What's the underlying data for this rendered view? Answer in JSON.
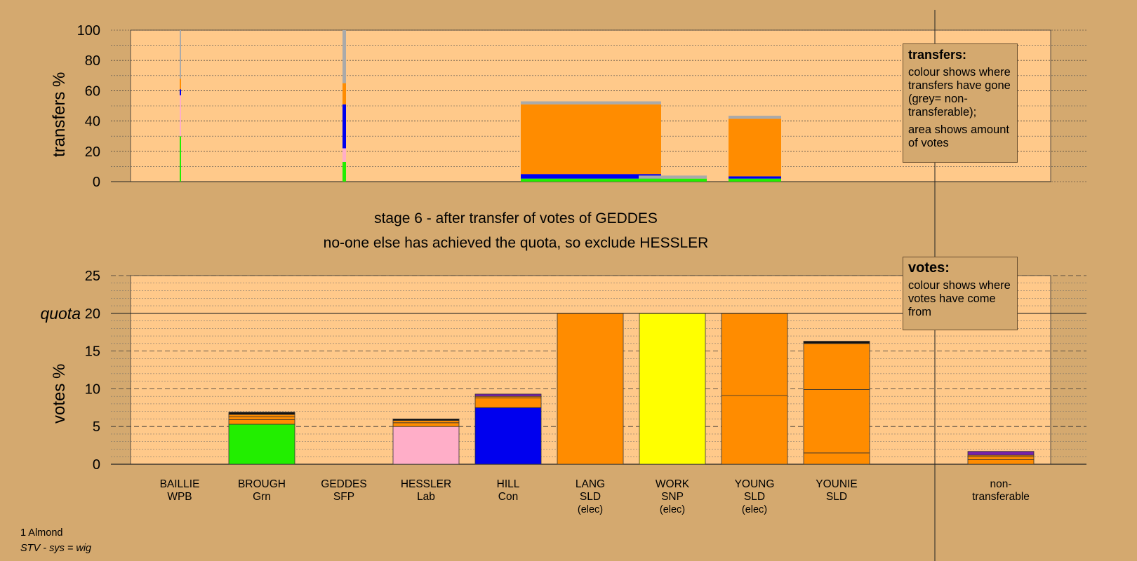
{
  "stage_title": "stage 6 - after transfer of votes of GEDDES",
  "stage_subtitle": "no-one else has achieved the quota, so exclude HESSLER",
  "footer": {
    "ward": "1 Almond",
    "system": "STV - sys = wig"
  },
  "legend_transfers": {
    "title": "transfers:",
    "line1": "colour shows where transfers have gone (grey= non-transferable);",
    "line2": "area shows amount of votes"
  },
  "legend_votes": {
    "title": "votes:",
    "line1": "colour shows where votes have come from"
  },
  "colors": {
    "background": "#d4a96f",
    "plot_bg": "#ffc98a",
    "SLD": "#ff8c00",
    "SNP": "#ffff00",
    "Grn": "#22ee00",
    "Lab": "#ffaec8",
    "Con": "#0000ee",
    "nontransferable": "#aaaaaa",
    "purple": "#7722aa",
    "dark": "#111111"
  },
  "chart_data": [
    {
      "type": "bar",
      "ylabel": "transfers %",
      "ylim": [
        0,
        100
      ],
      "yticks": [
        0,
        20,
        40,
        60,
        80,
        100
      ],
      "bars": [
        {
          "source": "BAILLIE",
          "segments": [
            {
              "party": "Grn",
              "value": 30
            },
            {
              "party": "Lab",
              "value": 27
            },
            {
              "party": "Con",
              "value": 4
            },
            {
              "party": "SLD",
              "value": 7
            },
            {
              "party": "nontransferable",
              "value": 32
            }
          ]
        },
        {
          "source": "GEDDES",
          "segments": [
            {
              "party": "Grn",
              "value": 13
            },
            {
              "party": "Lab",
              "value": 9
            },
            {
              "party": "Con",
              "value": 29
            },
            {
              "party": "SLD",
              "value": 14
            },
            {
              "party": "nontransferable",
              "value": 35
            }
          ]
        },
        {
          "source": "LANG",
          "segments": [
            {
              "party": "Grn",
              "value": 2
            },
            {
              "party": "Con",
              "value": 3
            },
            {
              "party": "SLD",
              "value": 46
            },
            {
              "party": "nontransferable",
              "value": 2
            }
          ]
        },
        {
          "source": "WORK",
          "segments": [
            {
              "party": "Grn",
              "value": 2
            },
            {
              "party": "nontransferable",
              "value": 2
            }
          ]
        },
        {
          "source": "YOUNG",
          "segments": [
            {
              "party": "Grn",
              "value": 2
            },
            {
              "party": "Con",
              "value": 1.5
            },
            {
              "party": "SLD",
              "value": 38
            },
            {
              "party": "nontransferable",
              "value": 2
            }
          ]
        }
      ]
    },
    {
      "type": "bar",
      "ylabel": "votes %",
      "ylim": [
        0,
        25
      ],
      "yticks": [
        0,
        5,
        10,
        15,
        20,
        25
      ],
      "quota": 20,
      "quota_label": "quota",
      "categories": [
        {
          "name": "BAILLIE",
          "party": "WPB",
          "note": ""
        },
        {
          "name": "BROUGH",
          "party": "Grn",
          "note": ""
        },
        {
          "name": "GEDDES",
          "party": "SFP",
          "note": ""
        },
        {
          "name": "HESSLER",
          "party": "Lab",
          "note": ""
        },
        {
          "name": "HILL",
          "party": "Con",
          "note": ""
        },
        {
          "name": "LANG",
          "party": "SLD",
          "note": "(elec)"
        },
        {
          "name": "WORK",
          "party": "SNP",
          "note": "(elec)"
        },
        {
          "name": "YOUNG",
          "party": "SLD",
          "note": "(elec)"
        },
        {
          "name": "YOUNIE",
          "party": "SLD",
          "note": ""
        }
      ],
      "nontransferable_label": "non-transferable",
      "values": [
        0,
        6.9,
        0,
        6.0,
        9.3,
        20,
        20,
        20,
        16.3
      ],
      "stacks": [
        [],
        [
          {
            "party": "Grn",
            "value": 5.3
          },
          {
            "party": "SLD",
            "value": 0.6
          },
          {
            "party": "SLD",
            "value": 0.4
          },
          {
            "party": "SLD",
            "value": 0.3
          },
          {
            "party": "dark",
            "value": 0.3
          }
        ],
        [],
        [
          {
            "party": "Lab",
            "value": 5.0
          },
          {
            "party": "SLD",
            "value": 0.5
          },
          {
            "party": "SLD",
            "value": 0.3
          },
          {
            "party": "dark",
            "value": 0.2
          }
        ],
        [
          {
            "party": "Con",
            "value": 7.5
          },
          {
            "party": "SLD",
            "value": 1.3
          },
          {
            "party": "SLD",
            "value": 0.2
          },
          {
            "party": "purple",
            "value": 0.3
          }
        ],
        [
          {
            "party": "SLD",
            "value": 20
          }
        ],
        [
          {
            "party": "SNP",
            "value": 20
          }
        ],
        [
          {
            "party": "SLD",
            "value": 9.1
          },
          {
            "party": "SLD",
            "value": 10.9
          }
        ],
        [
          {
            "party": "SLD",
            "value": 1.5
          },
          {
            "party": "SLD",
            "value": 8.4
          },
          {
            "party": "SLD",
            "value": 6.1
          },
          {
            "party": "dark",
            "value": 0.3
          }
        ]
      ],
      "nontransferable_stack": [
        {
          "party": "SLD",
          "value": 0.6
        },
        {
          "party": "SLD",
          "value": 0.4
        },
        {
          "party": "SLD",
          "value": 0.2
        },
        {
          "party": "purple",
          "value": 0.5
        }
      ]
    }
  ]
}
